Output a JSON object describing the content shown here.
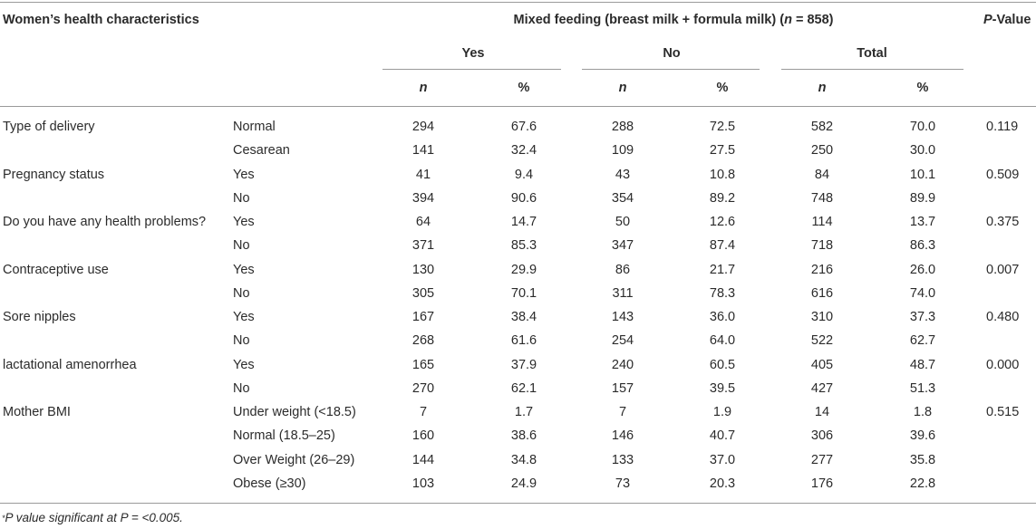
{
  "header": {
    "characteristics_label": "Women’s health characteristics",
    "group_title_prefix": "Mixed feeding (breast milk + formula milk) (",
    "group_title_n": "n",
    "group_title_suffix": " = 858)",
    "p_value_p": "P",
    "p_value_rest": "-Value",
    "subgroups": [
      "Yes",
      "No",
      "Total"
    ],
    "n_label": "n",
    "pct_label": "%"
  },
  "rows": [
    {
      "category": "Type of delivery",
      "level": "Normal",
      "yes_n": "294",
      "yes_pct": "67.6",
      "no_n": "288",
      "no_pct": "72.5",
      "total_n": "582",
      "total_pct": "70.0",
      "p": "0.119"
    },
    {
      "category": "",
      "level": "Cesarean",
      "yes_n": "141",
      "yes_pct": "32.4",
      "no_n": "109",
      "no_pct": "27.5",
      "total_n": "250",
      "total_pct": "30.0",
      "p": ""
    },
    {
      "category": "Pregnancy status",
      "level": "Yes",
      "yes_n": "41",
      "yes_pct": "9.4",
      "no_n": "43",
      "no_pct": "10.8",
      "total_n": "84",
      "total_pct": "10.1",
      "p": "0.509"
    },
    {
      "category": "",
      "level": "No",
      "yes_n": "394",
      "yes_pct": "90.6",
      "no_n": "354",
      "no_pct": "89.2",
      "total_n": "748",
      "total_pct": "89.9",
      "p": ""
    },
    {
      "category": "Do you have any health problems?",
      "level": "Yes",
      "yes_n": "64",
      "yes_pct": "14.7",
      "no_n": "50",
      "no_pct": "12.6",
      "total_n": "114",
      "total_pct": "13.7",
      "p": "0.375"
    },
    {
      "category": "",
      "level": "No",
      "yes_n": "371",
      "yes_pct": "85.3",
      "no_n": "347",
      "no_pct": "87.4",
      "total_n": "718",
      "total_pct": "86.3",
      "p": ""
    },
    {
      "category": "Contraceptive use",
      "level": "Yes",
      "yes_n": "130",
      "yes_pct": "29.9",
      "no_n": "86",
      "no_pct": "21.7",
      "total_n": "216",
      "total_pct": "26.0",
      "p": "0.007"
    },
    {
      "category": "",
      "level": "No",
      "yes_n": "305",
      "yes_pct": "70.1",
      "no_n": "311",
      "no_pct": "78.3",
      "total_n": "616",
      "total_pct": "74.0",
      "p": ""
    },
    {
      "category": "Sore nipples",
      "level": "Yes",
      "yes_n": "167",
      "yes_pct": "38.4",
      "no_n": "143",
      "no_pct": "36.0",
      "total_n": "310",
      "total_pct": "37.3",
      "p": "0.480"
    },
    {
      "category": "",
      "level": "No",
      "yes_n": "268",
      "yes_pct": "61.6",
      "no_n": "254",
      "no_pct": "64.0",
      "total_n": "522",
      "total_pct": "62.7",
      "p": ""
    },
    {
      "category": "lactational amenorrhea",
      "level": "Yes",
      "yes_n": "165",
      "yes_pct": "37.9",
      "no_n": "240",
      "no_pct": "60.5",
      "total_n": "405",
      "total_pct": "48.7",
      "p": "0.000"
    },
    {
      "category": "",
      "level": "No",
      "yes_n": "270",
      "yes_pct": "62.1",
      "no_n": "157",
      "no_pct": "39.5",
      "total_n": "427",
      "total_pct": "51.3",
      "p": ""
    },
    {
      "category": "Mother BMI",
      "level": "Under weight (<18.5)",
      "yes_n": "7",
      "yes_pct": "1.7",
      "no_n": "7",
      "no_pct": "1.9",
      "total_n": "14",
      "total_pct": "1.8",
      "p": "0.515"
    },
    {
      "category": "",
      "level": "Normal (18.5–25)",
      "yes_n": "160",
      "yes_pct": "38.6",
      "no_n": "146",
      "no_pct": "40.7",
      "total_n": "306",
      "total_pct": "39.6",
      "p": ""
    },
    {
      "category": "",
      "level": "Over Weight (26–29)",
      "yes_n": "144",
      "yes_pct": "34.8",
      "no_n": "133",
      "no_pct": "37.0",
      "total_n": "277",
      "total_pct": "35.8",
      "p": ""
    },
    {
      "category": "",
      "level": "Obese (≥30)",
      "yes_n": "103",
      "yes_pct": "24.9",
      "no_n": "73",
      "no_pct": "20.3",
      "total_n": "176",
      "total_pct": "22.8",
      "p": ""
    }
  ],
  "footnote": {
    "star": "*",
    "text": "P value significant at P = <0.005."
  }
}
